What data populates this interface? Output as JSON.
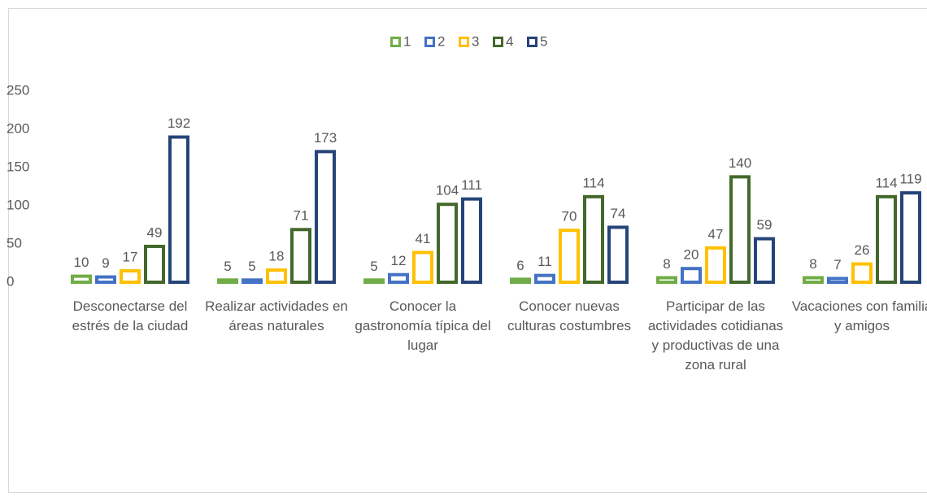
{
  "chart_data": {
    "type": "bar",
    "categories": [
      "Desconectarse del estrés de la ciudad",
      "Realizar actividades en áreas naturales",
      "Conocer la gastronomía típica del lugar",
      "Conocer nuevas culturas costumbres",
      "Participar de las actividades cotidianas y productivas de una zona rural",
      "Vacaciones con familia y amigos"
    ],
    "series": [
      {
        "name": "1",
        "color": "#70ad47",
        "values": [
          10,
          5,
          5,
          6,
          8,
          8
        ]
      },
      {
        "name": "2",
        "color": "#4472c4",
        "values": [
          9,
          5,
          12,
          11,
          20,
          7
        ]
      },
      {
        "name": "3",
        "color": "#ffc000",
        "values": [
          17,
          18,
          41,
          70,
          47,
          26
        ]
      },
      {
        "name": "4",
        "color": "#43682b",
        "values": [
          49,
          71,
          104,
          114,
          140,
          114
        ]
      },
      {
        "name": "5",
        "color": "#264478",
        "values": [
          192,
          173,
          111,
          74,
          59,
          119
        ]
      }
    ],
    "ylim": [
      0,
      250
    ],
    "yticks": [
      0,
      50,
      100,
      150,
      200,
      250
    ],
    "grid": false,
    "legend": "top"
  }
}
